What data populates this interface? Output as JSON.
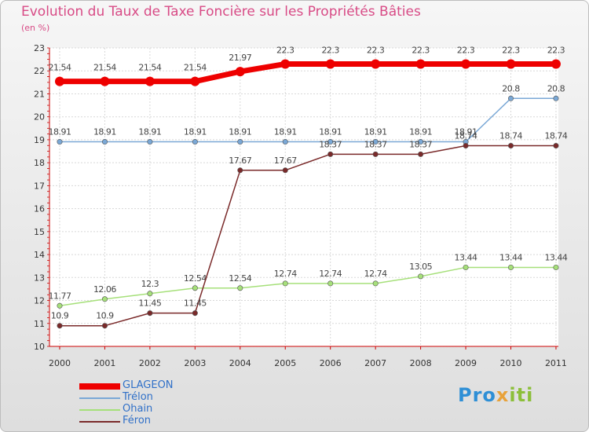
{
  "title": "Evolution du Taux de Taxe Foncière sur les Propriétés Bâties",
  "unit": "(en %)",
  "logo": {
    "part1": "Pro",
    "part2": "x",
    "part3": "iti"
  },
  "chart_data": {
    "type": "line",
    "title": "Evolution du Taux de Taxe Foncière sur les Propriétés Bâties",
    "ylabel": "(en %)",
    "xlabel": "",
    "ylim": [
      10,
      23
    ],
    "yticks": [
      10,
      11,
      12,
      13,
      14,
      15,
      16,
      17,
      18,
      19,
      20,
      21,
      22,
      23
    ],
    "categories": [
      "2000",
      "2001",
      "2002",
      "2003",
      "2004",
      "2005",
      "2006",
      "2007",
      "2008",
      "2009",
      "2010",
      "2011"
    ],
    "series": [
      {
        "name": "GLAGEON",
        "color": "#ee0000",
        "values": [
          21.54,
          21.54,
          21.54,
          21.54,
          21.97,
          22.3,
          22.3,
          22.3,
          22.3,
          22.3,
          22.3,
          22.3
        ],
        "labels": [
          "21.54",
          "21.54",
          "21.54",
          "21.54",
          "21.97",
          "22.3",
          "22.3",
          "22.3",
          "22.3",
          "22.3",
          "22.3",
          "22.3"
        ]
      },
      {
        "name": "Trélon",
        "color": "#7aa8d6",
        "values": [
          18.91,
          18.91,
          18.91,
          18.91,
          18.91,
          18.91,
          18.91,
          18.91,
          18.91,
          18.91,
          20.8,
          20.8
        ],
        "labels": [
          "18.91",
          "18.91",
          "18.91",
          "18.91",
          "18.91",
          "18.91",
          "18.91",
          "18.91",
          "18.91",
          "18.91",
          "20.8",
          "20.8"
        ]
      },
      {
        "name": "Ohain",
        "color": "#a6e07a",
        "values": [
          11.77,
          12.06,
          12.3,
          12.54,
          12.54,
          12.74,
          12.74,
          12.74,
          13.05,
          13.44,
          13.44,
          13.44
        ],
        "labels": [
          "11.77",
          "12.06",
          "12.3",
          "12.54",
          "12.54",
          "12.74",
          "12.74",
          "12.74",
          "13.05",
          "13.44",
          "13.44",
          "13.44"
        ]
      },
      {
        "name": "Féron",
        "color": "#7a2a2a",
        "values": [
          10.9,
          10.9,
          11.45,
          11.45,
          17.67,
          17.67,
          18.37,
          18.37,
          18.37,
          18.74,
          18.74,
          18.74
        ],
        "labels": [
          "10.9",
          "10.9",
          "11.45",
          "11.45",
          "17.67",
          "17.67",
          "18.37",
          "18.37",
          "18.37",
          "18.74",
          "18.74",
          "18.74"
        ]
      }
    ],
    "legend": "bottom-left"
  }
}
